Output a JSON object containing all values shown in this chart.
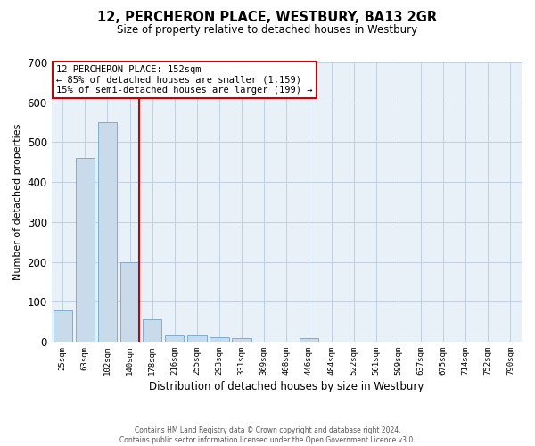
{
  "title": "12, PERCHERON PLACE, WESTBURY, BA13 2GR",
  "subtitle": "Size of property relative to detached houses in Westbury",
  "xlabel": "Distribution of detached houses by size in Westbury",
  "ylabel": "Number of detached properties",
  "footer_line1": "Contains HM Land Registry data © Crown copyright and database right 2024.",
  "footer_line2": "Contains public sector information licensed under the Open Government Licence v3.0.",
  "categories": [
    "25sqm",
    "63sqm",
    "102sqm",
    "140sqm",
    "178sqm",
    "216sqm",
    "255sqm",
    "293sqm",
    "331sqm",
    "369sqm",
    "408sqm",
    "446sqm",
    "484sqm",
    "522sqm",
    "561sqm",
    "599sqm",
    "637sqm",
    "675sqm",
    "714sqm",
    "752sqm",
    "790sqm"
  ],
  "values": [
    78,
    460,
    550,
    200,
    55,
    15,
    15,
    10,
    8,
    0,
    0,
    8,
    0,
    0,
    0,
    0,
    0,
    0,
    0,
    0,
    0
  ],
  "bar_color": "#c9daea",
  "bar_edge_color": "#7bafd4",
  "grid_color": "#c0d0e0",
  "background_color": "#e8f0f8",
  "vline_color": "#cc0000",
  "vline_x_index": 3.42,
  "annotation_line1": "12 PERCHERON PLACE: 152sqm",
  "annotation_line2": "← 85% of detached houses are smaller (1,159)",
  "annotation_line3": "15% of semi-detached houses are larger (199) →",
  "annotation_box_color": "#cc0000",
  "ylim": [
    0,
    700
  ],
  "yticks": [
    0,
    100,
    200,
    300,
    400,
    500,
    600,
    700
  ],
  "title_fontsize": 10.5,
  "subtitle_fontsize": 8.5
}
